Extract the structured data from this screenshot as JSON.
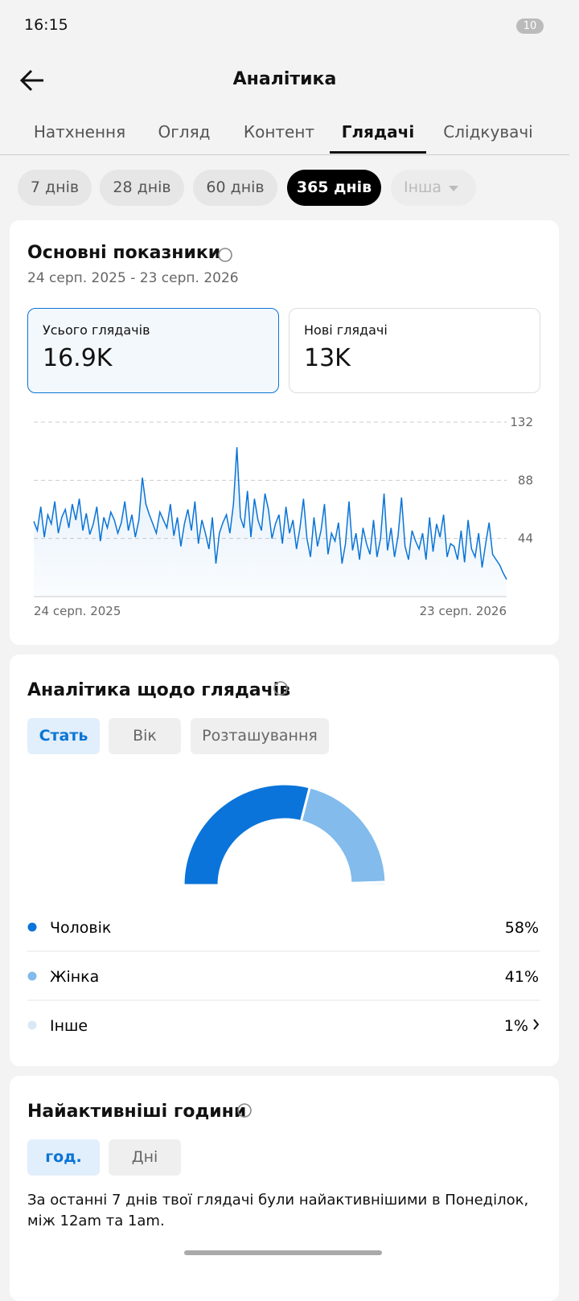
{
  "status_bar": {
    "time": "16:15",
    "battery": "10"
  },
  "header": {
    "title": "Аналітика"
  },
  "tabs": {
    "items": [
      "Натхнення",
      "Огляд",
      "Контент",
      "Глядачі",
      "Слідкувачі"
    ],
    "active": 3
  },
  "ranges": {
    "items": [
      "7 днів",
      "28 днів",
      "60 днів",
      "365 днів",
      "Інша"
    ],
    "active": 3,
    "disabled": 4
  },
  "key_metrics": {
    "title": "Основні показники",
    "date_range": "24 серп. 2025 - 23 серп. 2026",
    "cards": [
      {
        "label": "Усього глядачів",
        "value": "16.9K"
      },
      {
        "label": "Нові глядачі",
        "value": "13K"
      }
    ],
    "chart": {
      "type": "line",
      "color": "#0a74d6",
      "ylim": [
        0,
        132
      ],
      "yticks": [
        44,
        88,
        132
      ],
      "grid": true,
      "x_labels": [
        "24 серп. 2025",
        "23 серп. 2026"
      ],
      "values": [
        57,
        50,
        68,
        45,
        62,
        55,
        72,
        48,
        60,
        66,
        52,
        70,
        58,
        74,
        50,
        63,
        47,
        55,
        68,
        42,
        60,
        52,
        64,
        58,
        48,
        56,
        72,
        50,
        62,
        45,
        58,
        90,
        70,
        62,
        55,
        48,
        64,
        58,
        52,
        70,
        46,
        60,
        38,
        55,
        66,
        50,
        72,
        40,
        58,
        48,
        36,
        60,
        25,
        48,
        56,
        62,
        48,
        70,
        113,
        60,
        52,
        80,
        45,
        74,
        58,
        50,
        78,
        66,
        44,
        55,
        62,
        40,
        68,
        48,
        58,
        36,
        52,
        74,
        44,
        30,
        60,
        38,
        50,
        70,
        32,
        48,
        42,
        56,
        25,
        40,
        72,
        35,
        48,
        28,
        52,
        40,
        32,
        58,
        30,
        44,
        78,
        35,
        52,
        30,
        46,
        75,
        38,
        28,
        50,
        42,
        36,
        48,
        28,
        60,
        34,
        55,
        45,
        62,
        30,
        40,
        38,
        28,
        50,
        26,
        58,
        36,
        30,
        48,
        22,
        40,
        56,
        32,
        28,
        24,
        18,
        13
      ]
    }
  },
  "audience": {
    "title": "Аналітика щодо глядачів",
    "tabs": [
      "Стать",
      "Вік",
      "Розташування"
    ],
    "active": 0,
    "chart": {
      "type": "half-donut",
      "series": [
        {
          "name": "Чоловік",
          "value": 58,
          "value_label": "58%",
          "color": "#0a74da"
        },
        {
          "name": "Жінка",
          "value": 41,
          "value_label": "41%",
          "color": "#82bbec"
        },
        {
          "name": "Інше",
          "value": 1,
          "value_label": "1%",
          "color": "#d8e8f7"
        }
      ]
    }
  },
  "active_hours": {
    "title": "Найактивніші години",
    "tabs": [
      "год.",
      "Дні"
    ],
    "active": 0,
    "text": "За останні 7 днів твої глядачі були найактивнішими в Понеділок, між 12am та 1am."
  }
}
